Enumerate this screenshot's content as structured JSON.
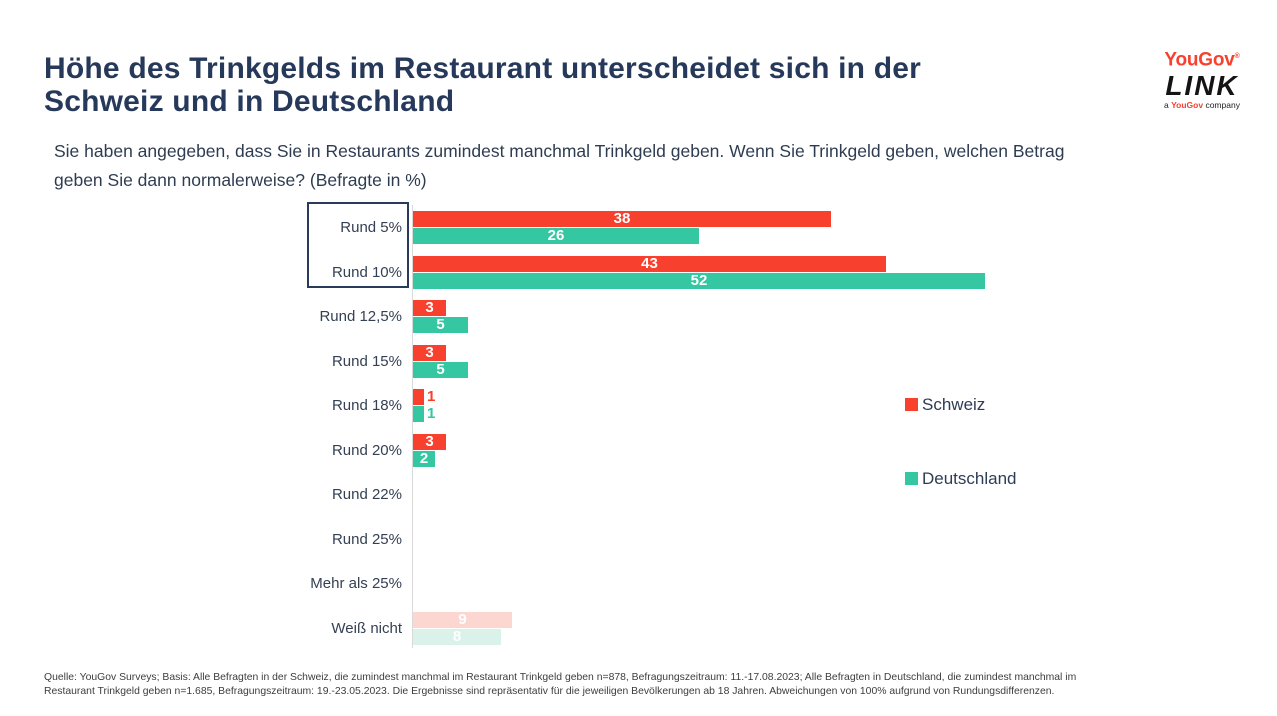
{
  "header": {
    "title_lines": [
      "Höhe des Trinkgelds im Restaurant unterscheidet sich in der",
      "Schweiz und in Deutschland"
    ],
    "subtitle_lines": [
      "Sie haben angegeben, dass Sie in Restaurants zumindest manchmal Trinkgeld geben. Wenn Sie Trinkgeld geben, welchen Betrag",
      "geben Sie dann normalerweise? (Befragte in %)"
    ]
  },
  "logo": {
    "yougov": "YouGov",
    "registered": "®",
    "link": "LINK",
    "tagline_prefix": "a ",
    "tagline_brand": "YouGov",
    "tagline_suffix": " company",
    "yougov_color": "#f8402e"
  },
  "chart_data": {
    "type": "bar",
    "orientation": "horizontal",
    "title": "Höhe des Trinkgelds im Restaurant unterscheidet sich in der Schweiz und in Deutschland",
    "unit": "Befragte in %",
    "categories": [
      "Rund 5%",
      "Rund 10%",
      "Rund 12,5%",
      "Rund 15%",
      "Rund 18%",
      "Rund 20%",
      "Rund 22%",
      "Rund 25%",
      "Mehr als 25%",
      "Weiß nicht"
    ],
    "series": [
      {
        "name": "Schweiz",
        "color": "#f8402e",
        "muted_color": "#fcd7d2",
        "values": [
          38,
          43,
          3,
          3,
          1,
          3,
          0,
          0,
          0,
          9
        ]
      },
      {
        "name": "Deutschland",
        "color": "#35c6a2",
        "muted_color": "#daf2ea",
        "values": [
          26,
          52,
          5,
          5,
          1,
          2,
          0,
          0,
          0,
          8
        ]
      }
    ],
    "muted_categories": [
      "Weiß nicht"
    ],
    "highlighted_categories": [
      "Rund 5%",
      "Rund 10%"
    ],
    "value_label_color_inside": "#ffffff",
    "xlim": [
      0,
      57
    ],
    "grid": false,
    "legend_position": "right",
    "axis_color": "#d9d9d9"
  },
  "footer": {
    "lines": [
      "Quelle: YouGov Surveys; Basis: Alle Befragten in der Schweiz, die zumindest manchmal im Restaurant Trinkgeld geben n=878, Befragungszeitraum: 11.-17.08.2023; Alle Befragten in Deutschland, die zumindest manchmal im",
      "Restaurant Trinkgeld geben n=1.685, Befragungszeitraum: 19.-23.05.2023. Die Ergebnisse sind repräsentativ für die jeweiligen Bevölkerungen ab 18 Jahren. Abweichungen von 100% aufgrund von Rundungsdifferenzen."
    ]
  }
}
